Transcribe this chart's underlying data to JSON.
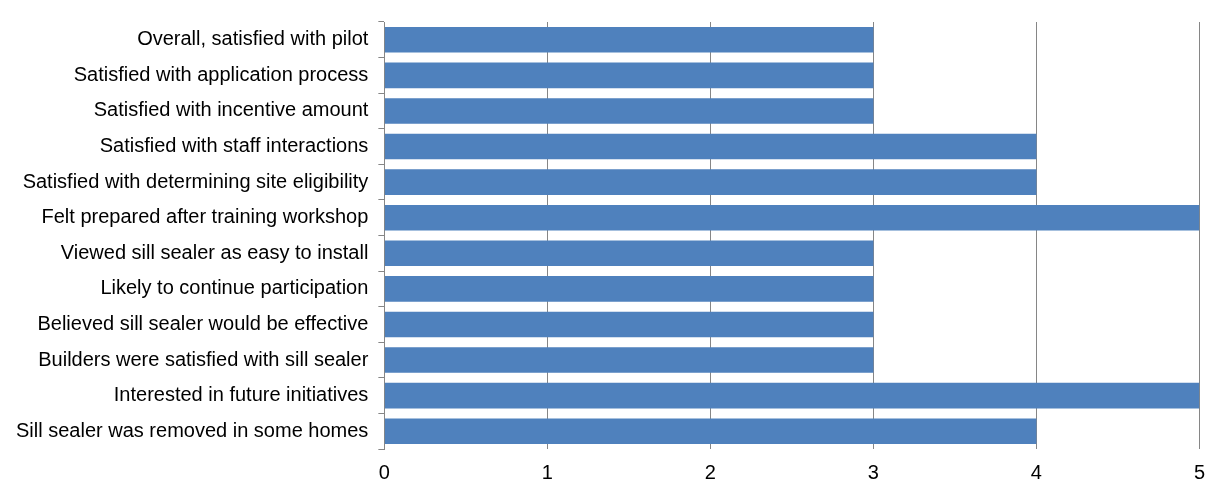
{
  "chart_data": {
    "type": "bar",
    "orientation": "horizontal",
    "categories": [
      "Overall, satisfied with pilot",
      "Satisfied with application process",
      "Satisfied with incentive amount",
      "Satisfied with staff interactions",
      "Satisfied with determining site eligibility",
      "Felt prepared after training workshop",
      "Viewed sill sealer as easy to install",
      "Likely to continue participation",
      "Believed sill sealer would be effective",
      "Builders were satisfied with sill sealer",
      "Interested in future initiatives",
      "Sill sealer was removed in some homes"
    ],
    "values": [
      3,
      3,
      3,
      4,
      4,
      5,
      3,
      3,
      3,
      3,
      5,
      4
    ],
    "color": "#4f81bd",
    "xlim": [
      0,
      5
    ],
    "xticks": [
      0,
      1,
      2,
      3,
      4,
      5
    ],
    "grid": "x",
    "legend": false
  }
}
